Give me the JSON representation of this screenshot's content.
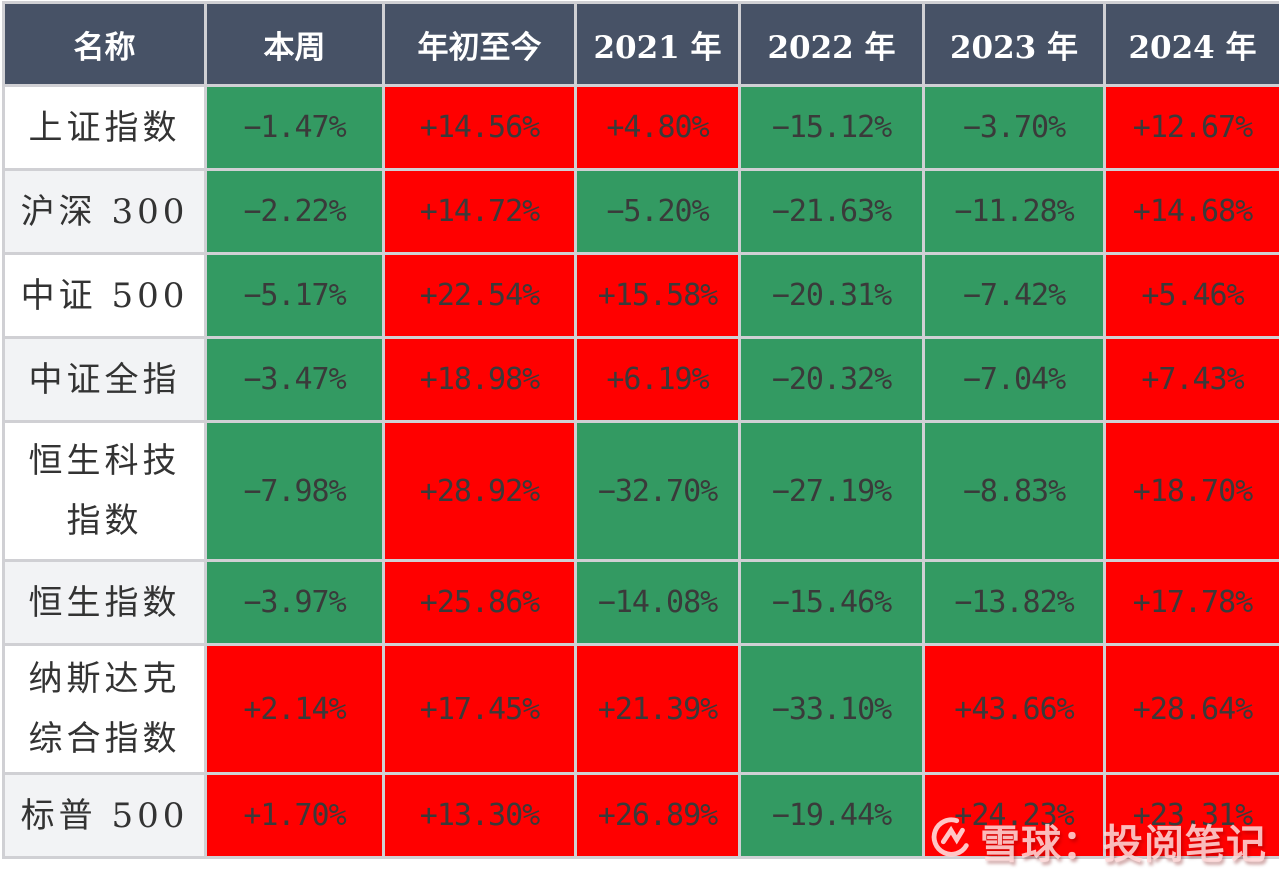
{
  "table": {
    "headers": [
      "名称",
      "本周",
      "年初至今",
      "2021 年",
      "2022 年",
      "2023 年",
      "2024 年"
    ],
    "rows": [
      {
        "name": "上证指数",
        "values": [
          "−1.47%",
          "+14.56%",
          "+4.80%",
          "−15.12%",
          "−3.70%",
          "+12.67%"
        ]
      },
      {
        "name": "沪深 300",
        "values": [
          "−2.22%",
          "+14.72%",
          "−5.20%",
          "−21.63%",
          "−11.28%",
          "+14.68%"
        ]
      },
      {
        "name": "中证 500",
        "values": [
          "−5.17%",
          "+22.54%",
          "+15.58%",
          "−20.31%",
          "−7.42%",
          "+5.46%"
        ]
      },
      {
        "name": "中证全指",
        "values": [
          "−3.47%",
          "+18.98%",
          "+6.19%",
          "−20.32%",
          "−7.04%",
          "+7.43%"
        ]
      },
      {
        "name": "恒生科技指数",
        "values": [
          "−7.98%",
          "+28.92%",
          "−32.70%",
          "−27.19%",
          "−8.83%",
          "+18.70%"
        ]
      },
      {
        "name": "恒生指数",
        "values": [
          "−3.97%",
          "+25.86%",
          "−14.08%",
          "−15.46%",
          "−13.82%",
          "+17.78%"
        ]
      },
      {
        "name": "纳斯达克综合指数",
        "values": [
          "+2.14%",
          "+17.45%",
          "+21.39%",
          "−33.10%",
          "+43.66%",
          "+28.64%"
        ]
      },
      {
        "name": "标普 500",
        "values": [
          "+1.70%",
          "+13.30%",
          "+26.89%",
          "−19.44%",
          "+24.23%",
          "+23.31%"
        ]
      }
    ]
  },
  "colors": {
    "header_bg": "#475266",
    "positive_bg": "#ff0000",
    "negative_bg": "#339a62",
    "grid": "#d0d0d4"
  },
  "watermark": {
    "icon": "snowball-logo-icon",
    "text": "雪球：投阅笔记"
  }
}
